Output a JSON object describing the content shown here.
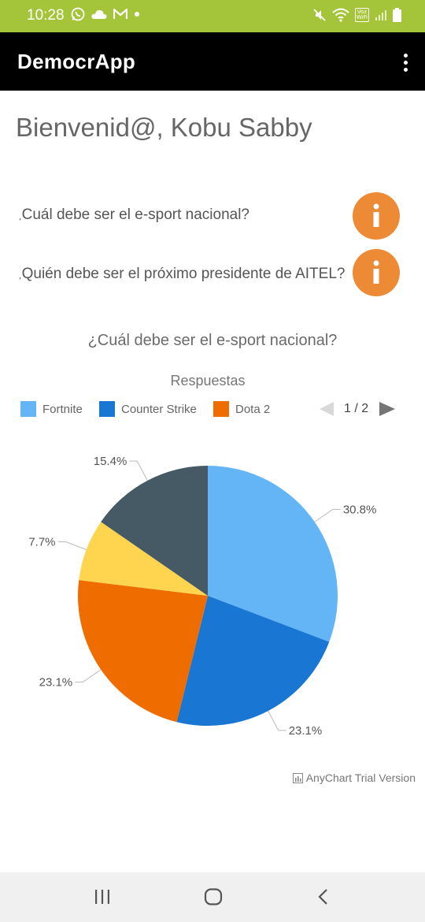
{
  "status_bar": {
    "time": "10:28",
    "left_icons": [
      "whatsapp-icon",
      "cloud-icon",
      "gmail-icon",
      "dot-icon"
    ],
    "right_icons": [
      "mute-icon",
      "wifi-icon",
      "volte-icon",
      "signal-icon",
      "battery-icon"
    ],
    "volte_text": "Voz WiFi"
  },
  "app_bar": {
    "title": "DemocrApp",
    "background": "#000000"
  },
  "welcome": "Bienvenid@, Kobu Sabby",
  "questions": [
    {
      "text": "¿Cuál debe ser el e-sport nacional?"
    },
    {
      "text": "¿Quién debe ser el próximo presidente de AITEL?"
    }
  ],
  "info_button_color": "#ec8a35",
  "chart": {
    "title": "¿Cuál debe ser el e-sport nacional?",
    "pager": {
      "text": "1 / 2"
    },
    "watermark": "AnyChart Trial Version"
  },
  "chart_data": {
    "type": "pie",
    "title": "Respuestas",
    "legend_position": "top",
    "slices": [
      {
        "name": "Fortnite",
        "value": 30.8,
        "label": "30.8%",
        "color": "#64b5f6"
      },
      {
        "name": "Counter Strike",
        "value": 23.1,
        "label": "23.1%",
        "color": "#1976d2"
      },
      {
        "name": "Dota 2",
        "value": 23.1,
        "label": "23.1%",
        "color": "#ef6c00"
      },
      {
        "name": "",
        "value": 7.7,
        "label": "7.7%",
        "color": "#ffd54f"
      },
      {
        "name": "",
        "value": 15.4,
        "label": "15.4%",
        "color": "#455a64"
      }
    ]
  }
}
